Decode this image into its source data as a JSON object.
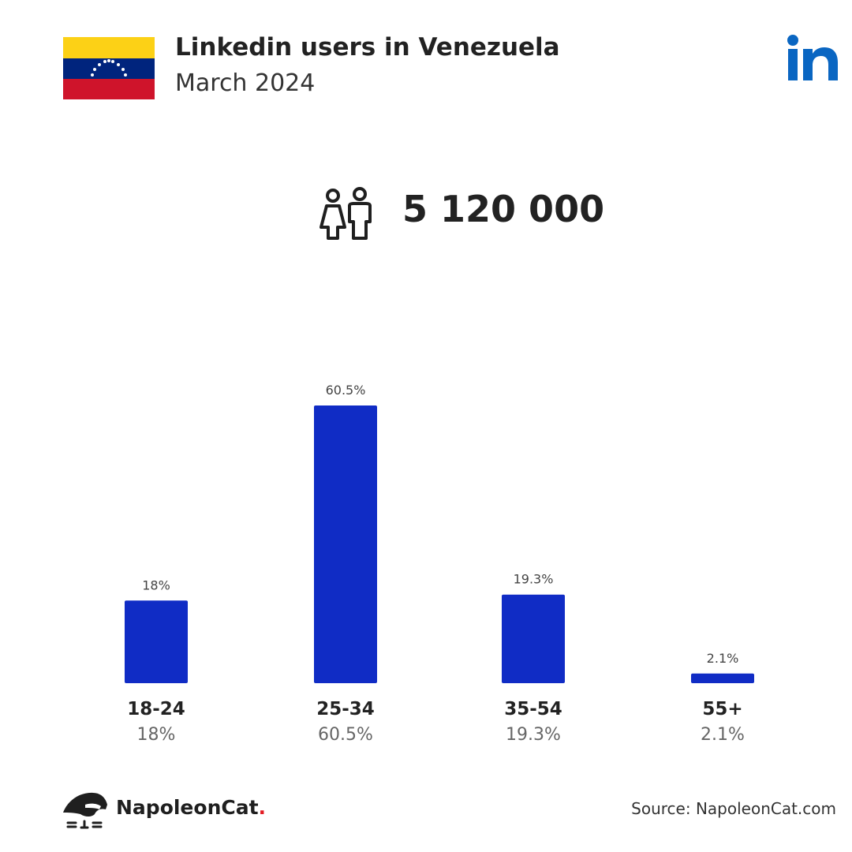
{
  "header": {
    "title": "Linkedin users in Venezuela",
    "subtitle": "March 2024"
  },
  "colors": {
    "bar": "#102cc5",
    "flag_yellow": "#fcd116",
    "flag_blue": "#00247d",
    "flag_red": "#cf142b",
    "linkedin_blue": "#0a66c2",
    "brand_dot": "#e31b23"
  },
  "icons": {
    "flag": "venezuela-flag-icon",
    "platform": "linkedin-logo-icon",
    "users": "male-female-users-icon",
    "brand": "napoleoncat-logo-icon"
  },
  "summary": {
    "total_users": "5 120 000"
  },
  "chart_data": {
    "type": "bar",
    "categories": [
      "18-24",
      "25-34",
      "35-54",
      "55+"
    ],
    "values": [
      18,
      60.5,
      19.3,
      2.1
    ],
    "value_labels": [
      "18%",
      "60.5%",
      "19.3%",
      "2.1%"
    ],
    "unit": "%",
    "title": "",
    "xlabel": "",
    "ylabel": "",
    "ylim": [
      0,
      60.5
    ],
    "grid": false,
    "legend": "none"
  },
  "footer": {
    "brand_name": "NapoleonCat",
    "brand_dot": ".",
    "source": "Source: NapoleonCat.com"
  }
}
